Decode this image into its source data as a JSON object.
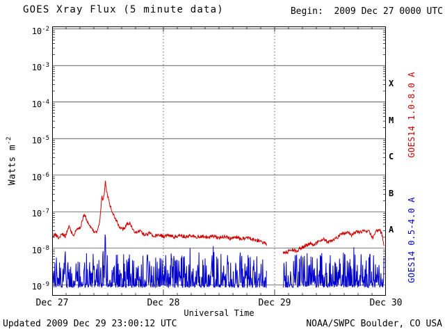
{
  "header": {
    "begin": "Begin:  2009 Dec 27 0000 UTC"
  },
  "footer": {
    "updated": "Updated 2009 Dec 29 23:00:12 UTC",
    "credit": "NOAA/SWPC Boulder, CO USA"
  },
  "chart_data": {
    "type": "line",
    "title": "GOES Xray Flux (5 minute data)",
    "xlabel": "Universal Time",
    "ylabel_text": "Watts m",
    "ylabel_exp": "-2",
    "y_tick_base": "10",
    "x_range_hours": [
      0,
      72
    ],
    "t_end_hours": 71.6,
    "sample_minutes": 5,
    "y_log_range": [
      -9.3,
      -1.93
    ],
    "y_decades": [
      -2,
      -3,
      -4,
      -5,
      -6,
      -7,
      -8,
      -9
    ],
    "x_ticks": [
      {
        "t": 0,
        "label": "Dec 27"
      },
      {
        "t": 24,
        "label": "Dec 28"
      },
      {
        "t": 48,
        "label": "Dec 29"
      },
      {
        "t": 72,
        "label": "Dec 30"
      }
    ],
    "minor_tick_hours": 3,
    "data_gap_hours": [
      46.3,
      49.8
    ],
    "seed": 20091227,
    "grid_color": "#000000",
    "legend_position": "right",
    "flare_classes": [
      {
        "label": "X",
        "log_center": -3.5
      },
      {
        "label": "M",
        "log_center": -4.5
      },
      {
        "label": "C",
        "log_center": -5.5
      },
      {
        "label": "B",
        "log_center": -6.5
      },
      {
        "label": "A",
        "log_center": -7.5
      }
    ],
    "series": [
      {
        "name": "GOES14 1.0-8.0 A",
        "color": "#cc0000",
        "kind": "interpolated",
        "noise_decades": 0.05,
        "label_log_center": -4.35,
        "control_points": [
          [
            0.0,
            -7.7
          ],
          [
            0.7,
            -7.62
          ],
          [
            1.4,
            -7.71
          ],
          [
            2.1,
            -7.6
          ],
          [
            2.8,
            -7.68
          ],
          [
            3.6,
            -7.4
          ],
          [
            4.1,
            -7.55
          ],
          [
            4.7,
            -7.62
          ],
          [
            5.3,
            -7.5
          ],
          [
            6.1,
            -7.44
          ],
          [
            6.9,
            -7.05
          ],
          [
            7.4,
            -7.2
          ],
          [
            8.1,
            -7.4
          ],
          [
            8.9,
            -7.52
          ],
          [
            9.6,
            -7.58
          ],
          [
            10.3,
            -7.25
          ],
          [
            10.7,
            -6.55
          ],
          [
            10.95,
            -6.75
          ],
          [
            11.2,
            -6.55
          ],
          [
            11.45,
            -6.13
          ],
          [
            11.75,
            -6.42
          ],
          [
            12.2,
            -6.7
          ],
          [
            12.9,
            -6.98
          ],
          [
            13.7,
            -7.22
          ],
          [
            14.5,
            -7.4
          ],
          [
            15.3,
            -7.5
          ],
          [
            16.1,
            -7.34
          ],
          [
            16.8,
            -7.3
          ],
          [
            17.4,
            -7.48
          ],
          [
            18.1,
            -7.58
          ],
          [
            19.0,
            -7.54
          ],
          [
            20.0,
            -7.64
          ],
          [
            21.0,
            -7.58
          ],
          [
            22.0,
            -7.66
          ],
          [
            23.0,
            -7.62
          ],
          [
            24.0,
            -7.68
          ],
          [
            25.2,
            -7.63
          ],
          [
            26.4,
            -7.7
          ],
          [
            27.6,
            -7.64
          ],
          [
            28.8,
            -7.7
          ],
          [
            30.0,
            -7.64
          ],
          [
            31.2,
            -7.7
          ],
          [
            32.4,
            -7.66
          ],
          [
            33.6,
            -7.72
          ],
          [
            34.8,
            -7.66
          ],
          [
            36.0,
            -7.71
          ],
          [
            37.2,
            -7.67
          ],
          [
            38.4,
            -7.73
          ],
          [
            39.6,
            -7.69
          ],
          [
            40.8,
            -7.75
          ],
          [
            42.0,
            -7.7
          ],
          [
            43.2,
            -7.76
          ],
          [
            44.4,
            -7.79
          ],
          [
            45.4,
            -7.84
          ],
          [
            46.3,
            -7.9
          ],
          [
            49.8,
            -8.1
          ],
          [
            50.6,
            -8.12
          ],
          [
            51.6,
            -8.04
          ],
          [
            52.6,
            -8.09
          ],
          [
            53.6,
            -8.0
          ],
          [
            54.6,
            -7.94
          ],
          [
            55.6,
            -7.87
          ],
          [
            56.6,
            -7.91
          ],
          [
            57.6,
            -7.79
          ],
          [
            58.6,
            -7.74
          ],
          [
            59.6,
            -7.84
          ],
          [
            60.6,
            -7.77
          ],
          [
            61.6,
            -7.69
          ],
          [
            62.6,
            -7.61
          ],
          [
            63.6,
            -7.57
          ],
          [
            64.6,
            -7.64
          ],
          [
            65.6,
            -7.54
          ],
          [
            66.6,
            -7.57
          ],
          [
            67.6,
            -7.51
          ],
          [
            68.4,
            -7.55
          ],
          [
            69.1,
            -7.71
          ],
          [
            69.9,
            -7.54
          ],
          [
            70.6,
            -7.51
          ],
          [
            71.1,
            -7.6
          ],
          [
            71.6,
            -7.92
          ]
        ]
      },
      {
        "name": "GOES14 0.5-4.0 A",
        "color": "#0000cc",
        "kind": "spiky",
        "base_log": -9.07,
        "spike_scale": 0.95,
        "extra_spike_prob": 0.06,
        "extra_spike_amp": 0.35,
        "flare": {
          "t": 11.45,
          "peak_log": -7.55,
          "width_hours": 0.15
        },
        "label_log_center": -7.78
      }
    ]
  }
}
